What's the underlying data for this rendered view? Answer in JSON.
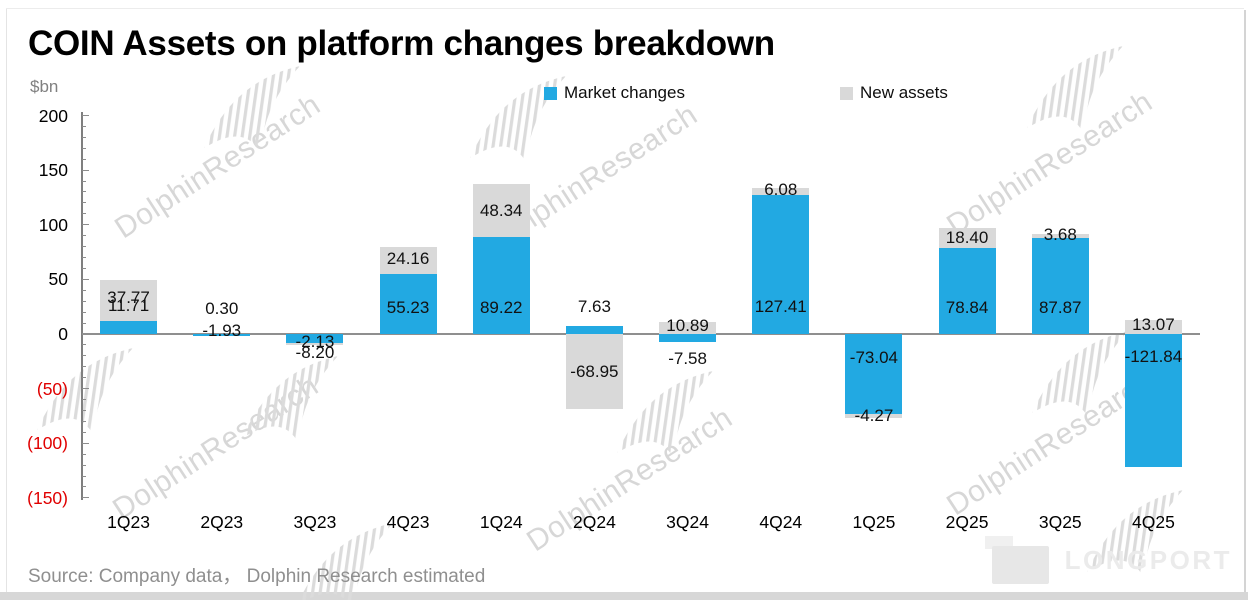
{
  "title": "COIN Assets on platform changes breakdown",
  "y_axis": {
    "unit": "$bn",
    "ticks": [
      "200",
      "150",
      "100",
      "50",
      "0",
      "(50)",
      "(100)",
      "(150)"
    ],
    "negative_tick_color": "#e00000"
  },
  "legend": {
    "items": [
      {
        "label": "Market changes",
        "color": "#22a9e2"
      },
      {
        "label": "New assets",
        "color": "#d9d9d9"
      }
    ]
  },
  "chart_data": {
    "type": "bar",
    "stacked": true,
    "title": "COIN Assets on platform changes breakdown",
    "ylabel": "$bn",
    "ylim": [
      -150,
      200
    ],
    "ytick_step": 50,
    "grid": false,
    "legend_position": "top",
    "categories": [
      "1Q23",
      "2Q23",
      "3Q23",
      "4Q23",
      "1Q24",
      "2Q24",
      "3Q24",
      "4Q24",
      "1Q25",
      "2Q25",
      "3Q25",
      "4Q25"
    ],
    "series": [
      {
        "name": "Market changes",
        "color": "#22a9e2",
        "values": [
          11.71,
          -1.93,
          -8.2,
          55.23,
          89.22,
          7.63,
          -7.58,
          127.41,
          -73.04,
          78.84,
          87.87,
          -121.84
        ]
      },
      {
        "name": "New assets",
        "color": "#d9d9d9",
        "values": [
          37.77,
          0.3,
          -2.13,
          24.16,
          48.34,
          -68.95,
          10.89,
          6.08,
          -4.27,
          18.4,
          3.68,
          13.07
        ]
      }
    ],
    "value_label_decimals": 2
  },
  "source_note": "Source:  Company data，  Dolphin Research estimated",
  "watermark": {
    "text": "DolphinResearch"
  },
  "brand": {
    "logo_text": "LONGPORT"
  }
}
